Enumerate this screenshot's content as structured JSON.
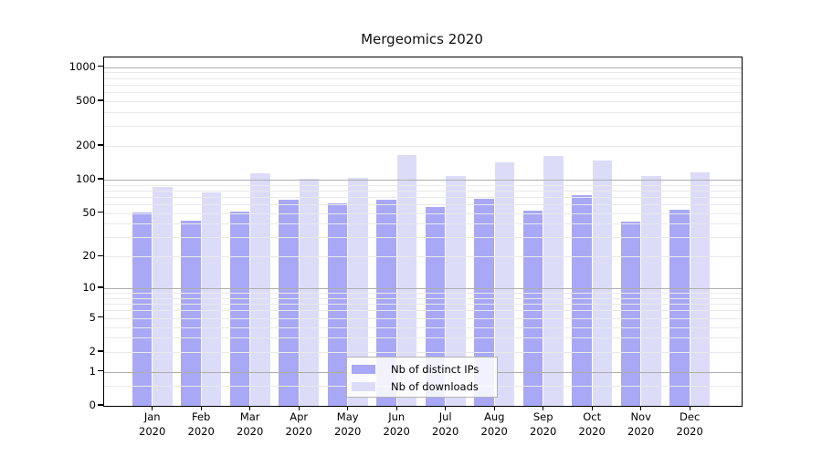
{
  "chart_data": {
    "type": "bar",
    "title": "Mergeomics 2020",
    "categories": [
      "Jan",
      "Feb",
      "Mar",
      "Apr",
      "May",
      "Jun",
      "Jul",
      "Aug",
      "Sep",
      "Oct",
      "Nov",
      "Dec"
    ],
    "x_sub_label": "2020",
    "series": [
      {
        "name": "Nb of distinct IPs",
        "color": "#a8a8f6",
        "values": [
          51,
          43,
          52,
          66,
          61,
          66,
          57,
          67,
          53,
          73,
          42,
          54
        ]
      },
      {
        "name": "Nb of downloads",
        "color": "#dcdcf9",
        "values": [
          86,
          77,
          113,
          101,
          103,
          165,
          108,
          142,
          164,
          148,
          107,
          116
        ]
      }
    ],
    "y_ticks": [
      0,
      1,
      2,
      5,
      10,
      20,
      50,
      100,
      200,
      500,
      1000
    ],
    "y_scale": "log1p",
    "ylim": [
      0,
      1220
    ],
    "grid": "horizontal",
    "grid_major_at": [
      1,
      10,
      100,
      1000
    ],
    "grid_major_color": "#aeaeae",
    "grid_minor_color": "#e9e9e9",
    "legend_position": "inside-bottom-center",
    "xlabel": "",
    "ylabel": ""
  }
}
